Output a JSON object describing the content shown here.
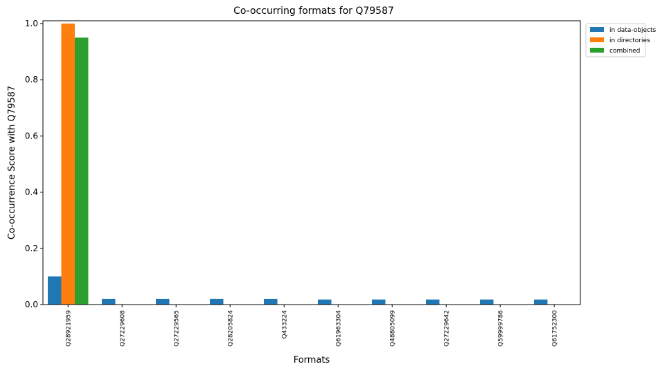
{
  "chart_data": {
    "type": "bar",
    "title": "Co-occurring formats for Q79587",
    "xlabel": "Formats",
    "ylabel": "Co-occurrence Score with Q79587",
    "ylim": [
      0,
      1.01
    ],
    "yticks": [
      "0.0",
      "0.2",
      "0.4",
      "0.6",
      "0.8",
      "1.0"
    ],
    "categories": [
      "Q28921959",
      "Q27229608",
      "Q27229565",
      "Q28205824",
      "Q433224",
      "Q61963304",
      "Q48805099",
      "Q27229642",
      "Q59999786",
      "Q61752300"
    ],
    "series": [
      {
        "name": "in data-objects",
        "color": "#1f77b4",
        "values": [
          0.1,
          0.02,
          0.02,
          0.02,
          0.02,
          0.018,
          0.018,
          0.018,
          0.018,
          0.018
        ]
      },
      {
        "name": "in directories",
        "color": "#ff7f0e",
        "values": [
          1.0,
          0,
          0,
          0,
          0,
          0,
          0,
          0,
          0,
          0
        ]
      },
      {
        "name": "combined",
        "color": "#2ca02c",
        "values": [
          0.95,
          0,
          0,
          0,
          0,
          0,
          0,
          0,
          0,
          0
        ]
      }
    ],
    "legend_position": "outside-top-right",
    "grid": false
  }
}
